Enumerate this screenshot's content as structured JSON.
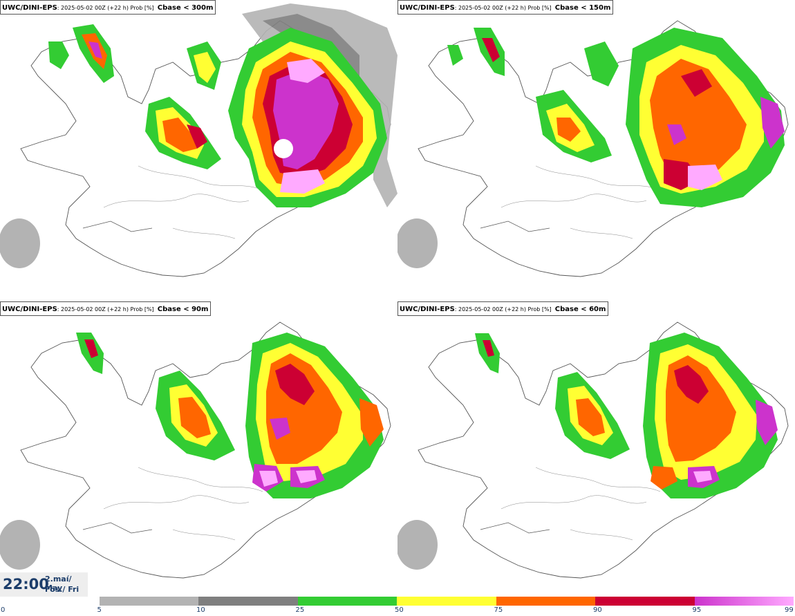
{
  "panels": [
    {
      "model": "UWC/DINI-EPS",
      "meta": ": 2025-05-02 00Z (+22 h) Prob [%]",
      "variable": "Cbase < 300m"
    },
    {
      "model": "UWC/DINI-EPS",
      "meta": ": 2025-05-02 00Z (+22 h) Prob [%]",
      "variable": "Cbase < 150m"
    },
    {
      "model": "UWC/DINI-EPS",
      "meta": ": 2025-05-02 00Z (+22 h) Prob [%]",
      "variable": "Cbase < 90m"
    },
    {
      "model": "UWC/DINI-EPS",
      "meta": ": 2025-05-02 00Z (+22 h) Prob [%]",
      "variable": "Cbase < 60m"
    }
  ],
  "valid_time": {
    "time": "22:00",
    "date_line1": "2.maí/ May",
    "date_line2": "Fös./ Fri"
  },
  "legend": {
    "ticks": [
      "0",
      "5",
      "10",
      "25",
      "50",
      "75",
      "90",
      "95",
      "99"
    ],
    "colors": [
      "#ffffff",
      "#b3b3b3",
      "#7f7f7f",
      "#33cc33",
      "#ffff33",
      "#ff6600",
      "#cc0033",
      "#cc33cc",
      "#ffaaff"
    ]
  }
}
